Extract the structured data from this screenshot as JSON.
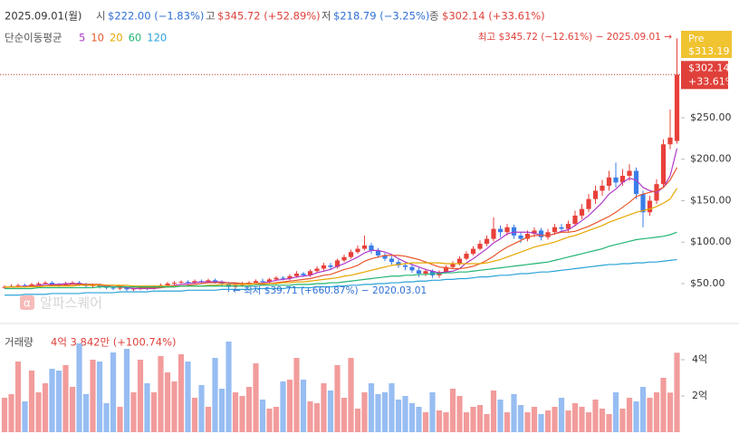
{
  "header": {
    "date": "2025.09.01(월)",
    "open_label": "시",
    "open": "$222.00 (−1.83%)",
    "high_label": "고",
    "high": "$345.72 (+52.89%)",
    "low_label": "저",
    "low": "$218.79 (−3.25%)",
    "close_label": "종",
    "close": "$302.14 (+33.61%)",
    "ma_label": "단순이동평균"
  },
  "watermark": {
    "logo": "α",
    "text": "알파스퀘어"
  },
  "chart_data": [
    {
      "type": "candlestick",
      "up_color": "#e8403a",
      "down_color": "#3a7de8",
      "open": [
        45,
        46,
        47,
        48,
        47,
        49,
        50,
        51,
        49,
        48,
        50,
        51,
        49,
        47,
        48,
        46,
        45,
        44,
        45,
        43,
        44,
        45,
        44,
        46,
        48,
        50,
        51,
        52,
        51,
        53,
        52,
        54,
        52,
        50,
        46,
        48,
        50,
        51,
        53,
        52,
        55,
        57,
        56,
        59,
        62,
        60,
        65,
        68,
        72,
        70,
        78,
        82,
        88,
        92,
        96,
        90,
        84,
        80,
        76,
        72,
        70,
        66,
        62,
        65,
        60,
        64,
        70,
        74,
        80,
        86,
        92,
        98,
        104,
        116,
        112,
        118,
        108,
        104,
        110,
        114,
        106,
        112,
        118,
        116,
        122,
        132,
        140,
        152,
        162,
        168,
        178,
        172,
        180,
        186,
        158,
        136,
        150,
        170,
        218,
        222
      ],
      "high": [
        48,
        49,
        50,
        50,
        51,
        52,
        53,
        53,
        51,
        52,
        53,
        53,
        51,
        50,
        50,
        48,
        47,
        47,
        47,
        46,
        47,
        47,
        48,
        50,
        52,
        53,
        54,
        54,
        55,
        55,
        56,
        56,
        54,
        52,
        50,
        52,
        53,
        55,
        56,
        57,
        59,
        59,
        61,
        65,
        64,
        67,
        71,
        75,
        75,
        80,
        85,
        91,
        96,
        108,
        99,
        93,
        87,
        83,
        79,
        75,
        73,
        69,
        68,
        67,
        66,
        72,
        77,
        83,
        89,
        95,
        102,
        108,
        130,
        120,
        122,
        121,
        112,
        114,
        118,
        117,
        116,
        122,
        122,
        126,
        138,
        146,
        158,
        168,
        175,
        186,
        196,
        188,
        194,
        190,
        162,
        156,
        176,
        224,
        260,
        345.72
      ],
      "low": [
        44,
        45,
        45,
        45,
        46,
        48,
        49,
        47,
        46,
        47,
        49,
        47,
        45,
        45,
        44,
        43,
        42,
        42,
        41,
        41,
        42,
        42,
        43,
        45,
        47,
        48,
        50,
        49,
        50,
        50,
        51,
        50,
        47,
        39.71,
        44,
        46,
        48,
        49,
        50,
        50,
        53,
        54,
        54,
        57,
        58,
        58,
        63,
        66,
        67,
        68,
        76,
        80,
        86,
        90,
        86,
        81,
        77,
        73,
        69,
        66,
        63,
        58,
        59,
        57,
        57,
        62,
        68,
        72,
        78,
        84,
        90,
        95,
        101,
        106,
        108,
        104,
        99,
        101,
        106,
        102,
        103,
        109,
        112,
        113,
        119,
        128,
        136,
        146,
        156,
        162,
        166,
        168,
        174,
        152,
        118,
        132,
        146,
        166,
        212,
        218.79
      ],
      "close": [
        46,
        47,
        48,
        47,
        49,
        50,
        51,
        49,
        48,
        50,
        51,
        49,
        47,
        48,
        46,
        45,
        44,
        45,
        43,
        44,
        45,
        44,
        46,
        48,
        50,
        51,
        52,
        51,
        53,
        52,
        54,
        52,
        50,
        46,
        48,
        50,
        51,
        53,
        52,
        55,
        57,
        56,
        59,
        62,
        60,
        65,
        68,
        72,
        70,
        78,
        82,
        88,
        92,
        96,
        90,
        84,
        80,
        76,
        72,
        70,
        66,
        62,
        65,
        60,
        64,
        70,
        74,
        80,
        86,
        92,
        98,
        104,
        116,
        112,
        118,
        108,
        104,
        110,
        114,
        106,
        112,
        118,
        116,
        122,
        132,
        140,
        152,
        162,
        168,
        178,
        172,
        180,
        186,
        158,
        136,
        150,
        170,
        218,
        226.14,
        302.14
      ],
      "series": [
        {
          "name": "5",
          "color": "#b03ac8",
          "values": [
            46,
            46,
            46,
            47,
            47,
            48,
            49,
            49,
            49,
            50,
            50,
            50,
            49,
            49,
            48,
            47,
            46,
            46,
            45,
            44,
            44,
            44,
            44,
            45,
            47,
            48,
            49,
            50,
            51,
            52,
            52,
            52,
            52,
            51,
            50,
            49,
            49,
            50,
            51,
            52,
            54,
            55,
            56,
            58,
            59,
            60,
            63,
            65,
            67,
            71,
            74,
            78,
            82,
            87,
            90,
            90,
            88,
            85,
            80,
            76,
            73,
            70,
            67,
            65,
            63,
            64,
            65,
            68,
            75,
            80,
            86,
            92,
            99,
            104,
            110,
            112,
            112,
            112,
            111,
            108,
            108,
            110,
            113,
            115,
            120,
            126,
            132,
            140,
            148,
            158,
            164,
            172,
            177,
            175,
            166,
            162,
            160,
            166,
            180,
            213
          ]
        },
        {
          "name": "10",
          "color": "#e8562a",
          "values": [
            46,
            46,
            46,
            46,
            47,
            47,
            47,
            48,
            48,
            48,
            49,
            49,
            49,
            49,
            49,
            48,
            48,
            47,
            46,
            46,
            45,
            45,
            45,
            45,
            46,
            46,
            47,
            48,
            49,
            50,
            51,
            51,
            51,
            51,
            51,
            50,
            50,
            50,
            49,
            50,
            51,
            52,
            53,
            54,
            55,
            56,
            58,
            60,
            61,
            64,
            67,
            69,
            72,
            77,
            80,
            82,
            84,
            84,
            84,
            83,
            81,
            79,
            76,
            73,
            70,
            69,
            68,
            68,
            69,
            71,
            74,
            78,
            83,
            89,
            94,
            98,
            102,
            106,
            108,
            108,
            108,
            110,
            112,
            112,
            113,
            116,
            119,
            123,
            127,
            131,
            136,
            142,
            148,
            155,
            158,
            160,
            162,
            166,
            175,
            190
          ]
        },
        {
          "name": "20",
          "color": "#e6a700",
          "values": [
            46,
            46,
            46,
            46,
            46,
            46,
            47,
            47,
            47,
            47,
            47,
            48,
            48,
            48,
            48,
            48,
            48,
            48,
            48,
            47,
            47,
            47,
            47,
            47,
            47,
            47,
            47,
            47,
            47,
            47,
            48,
            48,
            49,
            49,
            49,
            49,
            49,
            50,
            50,
            50,
            50,
            51,
            51,
            52,
            52,
            53,
            54,
            55,
            56,
            57,
            59,
            60,
            62,
            64,
            66,
            68,
            70,
            72,
            73,
            74,
            75,
            75,
            75,
            75,
            75,
            74,
            74,
            74,
            74,
            74,
            74,
            75,
            77,
            79,
            82,
            85,
            88,
            91,
            94,
            96,
            98,
            100,
            103,
            106,
            108,
            111,
            114,
            117,
            120,
            124,
            127,
            130,
            133,
            136,
            138,
            140,
            143,
            147,
            152,
            165
          ]
        },
        {
          "name": "60",
          "color": "#22b573",
          "values": [
            44,
            44,
            44,
            44,
            44,
            45,
            45,
            45,
            45,
            45,
            45,
            45,
            45,
            45,
            46,
            46,
            46,
            46,
            46,
            46,
            46,
            46,
            46,
            46,
            46,
            46,
            47,
            47,
            47,
            47,
            47,
            47,
            47,
            47,
            47,
            47,
            47,
            48,
            48,
            48,
            48,
            48,
            48,
            49,
            49,
            49,
            50,
            50,
            51,
            51,
            52,
            53,
            54,
            55,
            56,
            57,
            58,
            59,
            59,
            60,
            60,
            61,
            61,
            62,
            62,
            63,
            63,
            64,
            64,
            65,
            66,
            67,
            68,
            69,
            70,
            71,
            72,
            73,
            74,
            75,
            76,
            78,
            80,
            82,
            84,
            86,
            88,
            90,
            92,
            95,
            97,
            99,
            101,
            103,
            104,
            105,
            106,
            107,
            109,
            112
          ]
        },
        {
          "name": "120",
          "color": "#2aa3d8",
          "values": [
            36,
            36,
            36,
            37,
            37,
            37,
            37,
            38,
            38,
            38,
            38,
            38,
            39,
            39,
            39,
            39,
            39,
            40,
            40,
            40,
            40,
            40,
            41,
            41,
            41,
            41,
            41,
            42,
            42,
            42,
            42,
            42,
            43,
            43,
            43,
            43,
            43,
            44,
            44,
            44,
            44,
            44,
            45,
            45,
            45,
            45,
            46,
            46,
            46,
            47,
            47,
            48,
            48,
            49,
            49,
            50,
            50,
            51,
            51,
            52,
            52,
            53,
            53,
            54,
            54,
            55,
            55,
            56,
            56,
            57,
            58,
            58,
            59,
            60,
            60,
            61,
            62,
            62,
            63,
            64,
            64,
            65,
            66,
            67,
            68,
            69,
            70,
            71,
            72,
            73,
            73,
            74,
            74,
            75,
            75,
            76,
            76,
            77,
            78,
            79
          ]
        }
      ],
      "ylim": [
        15,
        359.3
      ],
      "yticks": [
        {
          "value": 50,
          "label": "$50.00"
        },
        {
          "value": 100,
          "label": "$100.00"
        },
        {
          "value": 150,
          "label": "$150.00"
        },
        {
          "value": 200,
          "label": "$200.00"
        },
        {
          "value": 250,
          "label": "$250.00"
        }
      ],
      "grid": false,
      "last_price": {
        "value": 302.14,
        "label": "$302.14",
        "change": "+33.61%"
      },
      "pre": {
        "tag": "Pre",
        "label": "$313.19"
      },
      "high_note": "최고 $345.72 (−12.61%) − 2025.09.01 →",
      "low_note": "← 최저 $39.71 (+660.87%) − 2020.03.01"
    },
    {
      "type": "bar",
      "title": "거래량",
      "subtitle": "4억 3,842만 (+100.74%)",
      "values": [
        1.9,
        2.1,
        3.9,
        1.7,
        3.4,
        2.2,
        2.7,
        3.5,
        3.4,
        3.7,
        2.5,
        4.9,
        2.1,
        4.0,
        3.9,
        1.6,
        4.4,
        1.4,
        4.6,
        2.2,
        4.0,
        2.7,
        2.2,
        4.2,
        3.3,
        2.8,
        4.3,
        3.9,
        1.9,
        2.6,
        1.4,
        4.1,
        2.4,
        5.0,
        2.2,
        2.0,
        2.5,
        3.8,
        1.8,
        1.3,
        1.4,
        2.8,
        2.9,
        4.1,
        2.9,
        1.7,
        1.6,
        2.7,
        2.3,
        3.7,
        1.9,
        4.1,
        1.3,
        2.2,
        2.7,
        2.1,
        2.2,
        2.7,
        1.8,
        2.0,
        1.6,
        1.4,
        1.1,
        2.2,
        1.2,
        1.1,
        2.4,
        2.0,
        1.1,
        1.4,
        1.5,
        1.0,
        2.3,
        1.8,
        1.1,
        2.1,
        1.5,
        1.1,
        1.4,
        1.0,
        1.2,
        1.4,
        1.9,
        1.2,
        1.6,
        1.4,
        1.1,
        1.8,
        1.3,
        1.0,
        2.2,
        1.3,
        1.9,
        1.7,
        2.5,
        1.9,
        2.2,
        3.0,
        2.184,
        4.3842
      ],
      "up_color": "#f29c9c",
      "down_color": "#97bdf2",
      "ylim": [
        0,
        5.85
      ],
      "yticks": [
        {
          "value": 2,
          "label": "2억"
        },
        {
          "value": 4,
          "label": "4억"
        }
      ]
    }
  ]
}
